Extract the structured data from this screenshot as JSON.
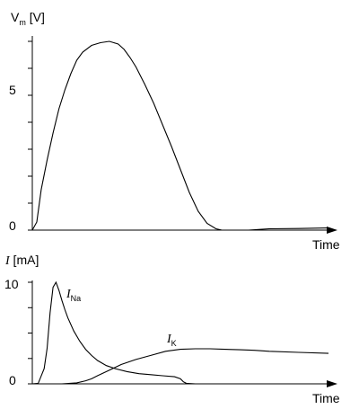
{
  "chart_data": [
    {
      "type": "line",
      "title": "",
      "ylabel": {
        "base": "V",
        "sub": "m",
        "unit": " [V]"
      },
      "xlabel": "Time",
      "ylim": [
        0,
        7.2
      ],
      "xlim": [
        0,
        100
      ],
      "yticks": [
        "0",
        "5"
      ],
      "series": [
        {
          "x": [
            0,
            1.5,
            3,
            5,
            7,
            9,
            11,
            13,
            15,
            17,
            20,
            23,
            26,
            27.5,
            29,
            31,
            33,
            35,
            38,
            41,
            44,
            47,
            50,
            53,
            56,
            59,
            62,
            64,
            65,
            66,
            67,
            68,
            70,
            73,
            80,
            90,
            100
          ],
          "y": [
            0,
            0.3,
            1.5,
            2.6,
            3.6,
            4.5,
            5.2,
            5.8,
            6.3,
            6.6,
            6.85,
            6.95,
            7.0,
            6.95,
            6.9,
            6.7,
            6.4,
            6.05,
            5.4,
            4.7,
            3.9,
            3.1,
            2.25,
            1.4,
            0.7,
            0.25,
            0.05,
            0.0,
            0.0,
            0.0,
            0.0,
            0.0,
            0.0,
            0.0,
            0.05,
            0.06,
            0.08
          ]
        }
      ]
    },
    {
      "type": "line",
      "title": "",
      "ylabel": {
        "base": "I",
        "unit": " [mA]"
      },
      "xlabel": "Time",
      "ylim": [
        0,
        10
      ],
      "xlim": [
        0,
        100
      ],
      "yticks": [
        "0",
        "10"
      ],
      "series": [
        {
          "name": {
            "base": "I",
            "sub": "Na"
          },
          "x": [
            0,
            2,
            4,
            5,
            6,
            7,
            8,
            9,
            10,
            11,
            12,
            14,
            16,
            18,
            20,
            22,
            25,
            28,
            32,
            36,
            40,
            44,
            48,
            50,
            51,
            52,
            55,
            60,
            100
          ],
          "y": [
            0,
            0.05,
            1.5,
            3.5,
            7.0,
            9.5,
            10,
            9.2,
            8.2,
            7.3,
            6.5,
            5.2,
            4.2,
            3.4,
            2.8,
            2.3,
            1.8,
            1.5,
            1.2,
            1.0,
            0.9,
            0.8,
            0.7,
            0.5,
            0.2,
            0.05,
            0,
            0,
            0
          ]
        },
        {
          "name": {
            "base": "I",
            "sub": "K"
          },
          "x": [
            0,
            10,
            15,
            18,
            20,
            22,
            25,
            30,
            35,
            40,
            45,
            50,
            55,
            60,
            65,
            70,
            75,
            80,
            90,
            100
          ],
          "y": [
            0,
            0,
            0.1,
            0.3,
            0.5,
            0.8,
            1.2,
            1.9,
            2.4,
            2.8,
            3.2,
            3.4,
            3.45,
            3.45,
            3.4,
            3.35,
            3.3,
            3.2,
            3.1,
            3.0
          ]
        }
      ]
    }
  ]
}
